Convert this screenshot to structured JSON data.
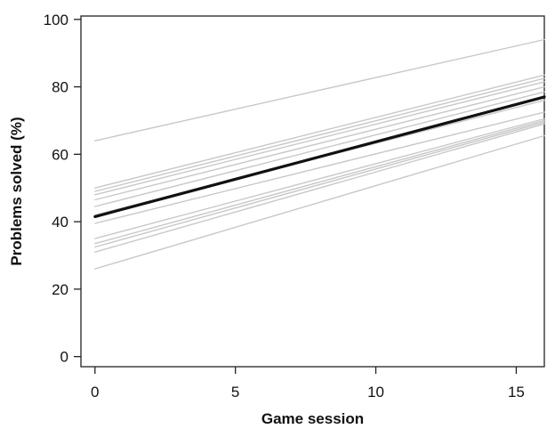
{
  "chart_data": {
    "type": "line",
    "title": "",
    "xlabel": "Game session",
    "ylabel": "Problems solved (%)",
    "xlim": [
      -0.5,
      16
    ],
    "ylim": [
      -3,
      101
    ],
    "xticks": [
      0,
      5,
      10,
      15
    ],
    "yticks": [
      0,
      20,
      40,
      60,
      80,
      100
    ],
    "grid": false,
    "legend": "none",
    "colors": {
      "individual": "#c8c8c8",
      "mean": "#111111",
      "axis": "#222222"
    },
    "series": [
      {
        "role": "individual",
        "x": [
          0,
          16
        ],
        "y": [
          64,
          94
        ]
      },
      {
        "role": "individual",
        "x": [
          0,
          16
        ],
        "y": [
          50,
          83.5
        ]
      },
      {
        "role": "individual",
        "x": [
          0,
          16
        ],
        "y": [
          49,
          82.5
        ]
      },
      {
        "role": "individual",
        "x": [
          0,
          16
        ],
        "y": [
          48,
          81.5
        ]
      },
      {
        "role": "individual",
        "x": [
          0,
          16
        ],
        "y": [
          46.5,
          80
        ]
      },
      {
        "role": "individual",
        "x": [
          0,
          16
        ],
        "y": [
          44.5,
          78.5
        ]
      },
      {
        "role": "individual",
        "x": [
          0,
          16
        ],
        "y": [
          42,
          76
        ]
      },
      {
        "role": "individual",
        "x": [
          0,
          16
        ],
        "y": [
          39.5,
          72.5
        ]
      },
      {
        "role": "individual",
        "x": [
          0,
          16
        ],
        "y": [
          35,
          70.5
        ]
      },
      {
        "role": "individual",
        "x": [
          0,
          16
        ],
        "y": [
          33.5,
          70
        ]
      },
      {
        "role": "individual",
        "x": [
          0,
          16
        ],
        "y": [
          32.5,
          69.5
        ]
      },
      {
        "role": "individual",
        "x": [
          0,
          16
        ],
        "y": [
          31,
          69
        ]
      },
      {
        "role": "individual",
        "x": [
          0,
          16
        ],
        "y": [
          26,
          65.5
        ]
      },
      {
        "role": "mean",
        "x": [
          0,
          16
        ],
        "y": [
          41.5,
          77
        ]
      }
    ]
  }
}
